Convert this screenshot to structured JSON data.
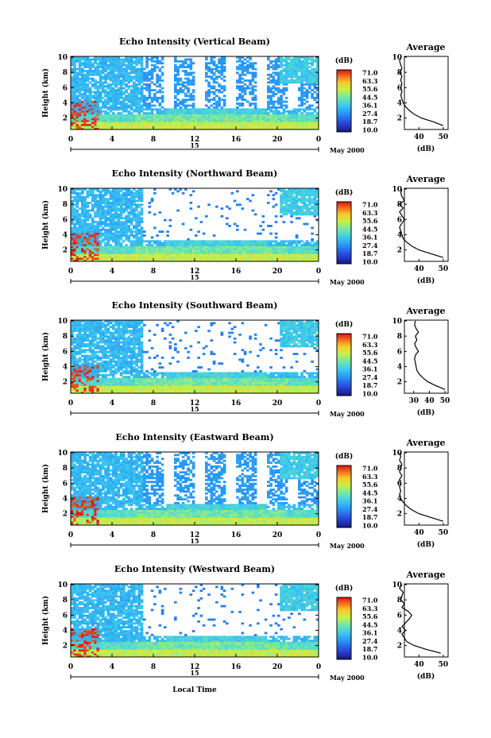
{
  "chart_data": [
    {
      "type": "heatmap",
      "title": "Echo Intensity (Vertical Beam)",
      "ylabel": "Height (km)",
      "x_ticks": [
        "0",
        "4",
        "8",
        "12",
        "16",
        "20",
        "0"
      ],
      "y_ticks": [
        "2",
        "4",
        "6",
        "8",
        "10"
      ],
      "day_label": "15",
      "date_label": "May 2000",
      "colorbar": {
        "unit": "(dB)",
        "levels": [
          "71.0",
          "63.3",
          "55.6",
          "44.5",
          "36.1",
          "27.4",
          "18.7",
          "10.0"
        ]
      },
      "average_profile": {
        "title": "Average",
        "xlabel": "(dB)",
        "x_ticks": [
          "40",
          "50"
        ],
        "y_ticks": [
          "2",
          "4",
          "6",
          "8",
          "10"
        ],
        "height_km": [
          1,
          1.5,
          2,
          2.5,
          3,
          3.5,
          4,
          4.5,
          5,
          5.5,
          6,
          6.5,
          7,
          7.5,
          8,
          8.5,
          9,
          9.5,
          10
        ],
        "db": [
          50,
          46,
          41,
          38,
          36,
          34.5,
          33.5,
          33,
          32.5,
          33,
          32.5,
          33,
          32.5,
          33,
          32,
          33,
          32.5,
          32,
          32.5
        ]
      }
    },
    {
      "type": "heatmap",
      "title": "Echo Intensity (Northward Beam)",
      "ylabel": "Height (km)",
      "x_ticks": [
        "0",
        "4",
        "8",
        "12",
        "16",
        "20",
        "0"
      ],
      "y_ticks": [
        "2",
        "4",
        "6",
        "8",
        "10"
      ],
      "day_label": "15",
      "date_label": "May 2000",
      "colorbar": {
        "unit": "(dB)",
        "levels": [
          "71.0",
          "63.3",
          "55.6",
          "44.5",
          "36.1",
          "27.4",
          "18.7",
          "10.0"
        ]
      },
      "average_profile": {
        "title": "Average",
        "xlabel": "(dB)",
        "x_ticks": [
          "40",
          "50"
        ],
        "y_ticks": [
          "2",
          "4",
          "6",
          "8",
          "10"
        ],
        "height_km": [
          1,
          1.5,
          2,
          2.5,
          3,
          3.5,
          4,
          4.5,
          5,
          5.5,
          6,
          6.5,
          7,
          7.5,
          8,
          8.5,
          9,
          9.5,
          10
        ],
        "db": [
          50,
          45,
          40,
          37,
          35,
          33.5,
          33,
          32.5,
          32,
          33,
          34,
          33,
          32,
          33.5,
          32,
          34,
          33,
          32.5,
          33
        ]
      }
    },
    {
      "type": "heatmap",
      "title": "Echo Intensity (Southward Beam)",
      "ylabel": "Height (km)",
      "x_ticks": [
        "0",
        "4",
        "8",
        "12",
        "16",
        "20",
        "0"
      ],
      "y_ticks": [
        "2",
        "4",
        "6",
        "8",
        "10"
      ],
      "day_label": "15",
      "date_label": "May 2000",
      "colorbar": {
        "unit": "(dB)",
        "levels": [
          "71.0",
          "63.3",
          "55.6",
          "44.5",
          "36.1",
          "27.4",
          "18.7",
          "10.0"
        ]
      },
      "average_profile": {
        "title": "Average",
        "xlabel": "(dB)",
        "x_ticks": [
          "30",
          "40",
          "50"
        ],
        "y_ticks": [
          "2",
          "4",
          "6",
          "8",
          "10"
        ],
        "height_km": [
          1,
          1.5,
          2,
          2.5,
          3,
          3.5,
          4,
          4.5,
          5,
          5.5,
          6,
          6.5,
          7,
          7.5,
          8,
          8.5,
          9,
          9.5,
          10
        ],
        "db": [
          50,
          44,
          39,
          36,
          33.5,
          32,
          31.5,
          31,
          30.5,
          31,
          33,
          31.5,
          30.5,
          32,
          31,
          33,
          31.5,
          30.5,
          31
        ]
      }
    },
    {
      "type": "heatmap",
      "title": "Echo Intensity (Eastward Beam)",
      "ylabel": "Height (km)",
      "x_ticks": [
        "0",
        "4",
        "8",
        "12",
        "16",
        "20",
        "0"
      ],
      "y_ticks": [
        "2",
        "4",
        "6",
        "8",
        "10"
      ],
      "day_label": "15",
      "date_label": "May 2000",
      "colorbar": {
        "unit": "(dB)",
        "levels": [
          "71.0",
          "63.3",
          "55.6",
          "44.5",
          "36.1",
          "27.4",
          "18.7",
          "10.0"
        ]
      },
      "average_profile": {
        "title": "Average",
        "xlabel": "(dB)",
        "x_ticks": [
          "40",
          "50"
        ],
        "y_ticks": [
          "2",
          "4",
          "6",
          "8",
          "10"
        ],
        "height_km": [
          1,
          1.5,
          2,
          2.5,
          3,
          3.5,
          4,
          4.5,
          5,
          5.5,
          6,
          6.5,
          7,
          7.5,
          8,
          8.5,
          9,
          9.5,
          10
        ],
        "db": [
          50,
          45,
          40,
          37,
          35,
          33.5,
          32.5,
          32,
          32.5,
          32,
          32.5,
          32,
          33,
          32,
          32.5,
          33,
          32,
          32.5,
          32
        ]
      }
    },
    {
      "type": "heatmap",
      "title": "Echo Intensity (Westward Beam)",
      "ylabel": "Height (km)",
      "x_ticks": [
        "0",
        "4",
        "8",
        "12",
        "16",
        "20",
        "0"
      ],
      "y_ticks": [
        "2",
        "4",
        "6",
        "8",
        "10"
      ],
      "day_label": "15",
      "date_label": "May 2000",
      "xlabel": "Local Time",
      "colorbar": {
        "unit": "(dB)",
        "levels": [
          "71.0",
          "63.3",
          "55.6",
          "44.5",
          "36.1",
          "27.4",
          "18.7",
          "10.0"
        ]
      },
      "average_profile": {
        "title": "Average",
        "xlabel": "(dB)",
        "x_ticks": [
          "40",
          "50"
        ],
        "y_ticks": [
          "2",
          "4",
          "6",
          "8",
          "10"
        ],
        "height_km": [
          1,
          1.5,
          2,
          2.5,
          3,
          3.5,
          4,
          4.5,
          5,
          5.5,
          6,
          6.5,
          7,
          7.5,
          8,
          8.5,
          9,
          9.5,
          10
        ],
        "db": [
          49,
          43,
          38,
          35,
          34,
          33,
          34.5,
          33,
          34.5,
          36,
          37,
          35.5,
          33,
          34,
          32.5,
          33,
          33.5,
          32,
          33
        ]
      }
    }
  ]
}
